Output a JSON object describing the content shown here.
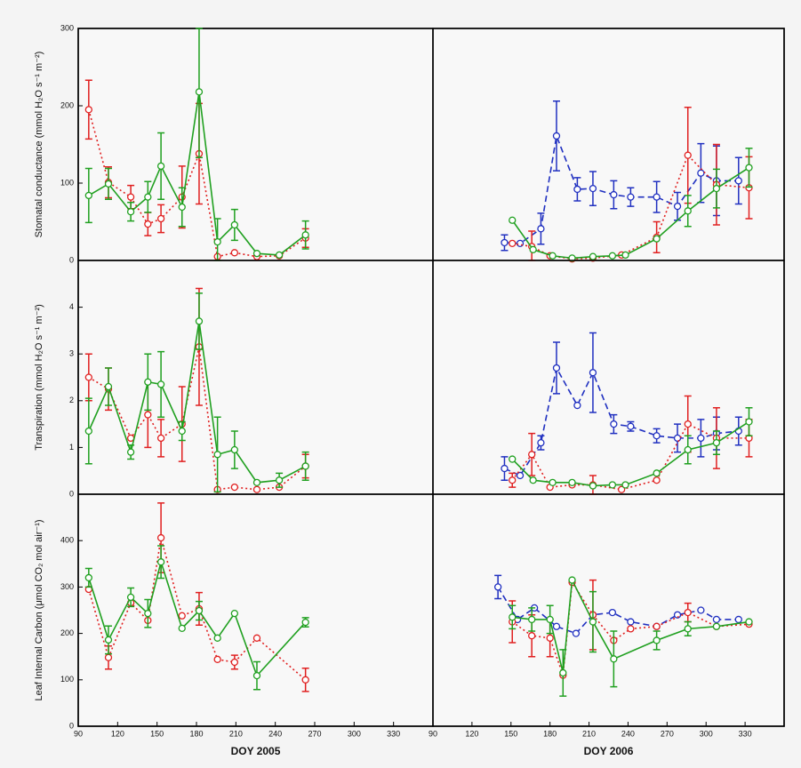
{
  "chart_data": [
    {
      "type": "line",
      "ylabel": "Stomatal conductance (mmol H₂O s⁻¹ m⁻²)",
      "xlim": [
        90,
        360
      ],
      "ylim": [
        0,
        300
      ],
      "yticks": [
        0,
        100,
        200,
        300
      ],
      "series": [
        {
          "color": "#e02020",
          "style": "dotted",
          "x": [
            98,
            113,
            130,
            143,
            153,
            169,
            182,
            196,
            209,
            226,
            243,
            263
          ],
          "values": [
            195,
            101,
            82,
            47,
            54,
            82,
            138,
            5,
            10,
            5,
            6,
            29
          ],
          "errors": [
            38,
            20,
            15,
            15,
            18,
            40,
            65,
            null,
            null,
            null,
            null,
            12
          ]
        },
        {
          "color": "#20a020",
          "style": "solid",
          "x": [
            98,
            113,
            130,
            143,
            153,
            169,
            182,
            196,
            209,
            226,
            243,
            263
          ],
          "values": [
            84,
            99,
            63,
            82,
            122,
            69,
            218,
            24,
            46,
            9,
            7,
            33
          ],
          "errors": [
            35,
            20,
            12,
            20,
            43,
            25,
            85,
            30,
            20,
            null,
            null,
            18
          ]
        }
      ]
    },
    {
      "type": "line",
      "xlim": [
        90,
        360
      ],
      "ylim": [
        0,
        300
      ],
      "series": [
        {
          "color": "#2030c0",
          "style": "dashed",
          "x": [
            145,
            157,
            173,
            185,
            201,
            213,
            229,
            242,
            262,
            278,
            296,
            308,
            325
          ],
          "values": [
            23,
            22,
            41,
            161,
            92,
            93,
            85,
            82,
            82,
            70,
            113,
            103,
            103
          ],
          "errors": [
            10,
            null,
            20,
            45,
            15,
            22,
            18,
            12,
            20,
            18,
            38,
            45,
            30
          ]
        },
        {
          "color": "#e02020",
          "style": "dotted",
          "x": [
            151,
            166,
            180,
            197,
            213,
            235,
            262,
            286,
            308,
            333
          ],
          "values": [
            22,
            18,
            6,
            2,
            3,
            7,
            30,
            136,
            98,
            94
          ],
          "errors": [
            null,
            20,
            null,
            null,
            null,
            null,
            20,
            62,
            52,
            40
          ]
        },
        {
          "color": "#20a020",
          "style": "solid",
          "x": [
            151,
            167,
            182,
            197,
            213,
            228,
            238,
            262,
            286,
            308,
            333
          ],
          "values": [
            52,
            14,
            6,
            3,
            5,
            6,
            7,
            28,
            64,
            93,
            120
          ],
          "errors": [
            null,
            null,
            null,
            null,
            null,
            null,
            null,
            null,
            20,
            25,
            25
          ]
        }
      ]
    },
    {
      "type": "line",
      "ylabel": "Transpiration (mmol H₂O s⁻¹ m⁻²)",
      "xlim": [
        90,
        360
      ],
      "ylim": [
        0,
        5
      ],
      "yticks": [
        0,
        1,
        2,
        3,
        4
      ],
      "series": [
        {
          "color": "#e02020",
          "style": "dotted",
          "x": [
            98,
            113,
            130,
            143,
            153,
            169,
            182,
            196,
            209,
            226,
            243,
            263
          ],
          "values": [
            2.5,
            2.25,
            1.2,
            1.7,
            1.2,
            1.5,
            3.15,
            0.1,
            0.15,
            0.1,
            0.15,
            0.6
          ],
          "errors": [
            0.5,
            0.45,
            null,
            0.7,
            0.4,
            0.8,
            1.25,
            null,
            null,
            null,
            null,
            0.25
          ]
        },
        {
          "color": "#20a020",
          "style": "solid",
          "x": [
            98,
            113,
            130,
            143,
            153,
            169,
            182,
            196,
            209,
            226,
            243,
            263
          ],
          "values": [
            1.35,
            2.3,
            0.9,
            2.4,
            2.35,
            1.35,
            3.7,
            0.85,
            0.95,
            0.25,
            0.3,
            0.6
          ],
          "errors": [
            0.7,
            0.4,
            0.15,
            0.6,
            0.7,
            0.2,
            0.6,
            0.8,
            0.4,
            null,
            0.15,
            0.3
          ]
        }
      ]
    },
    {
      "type": "line",
      "xlim": [
        90,
        360
      ],
      "ylim": [
        0,
        5
      ],
      "series": [
        {
          "color": "#2030c0",
          "style": "dashed",
          "x": [
            145,
            157,
            173,
            185,
            201,
            213,
            229,
            242,
            262,
            278,
            296,
            308,
            325
          ],
          "values": [
            0.55,
            0.4,
            1.1,
            2.7,
            1.9,
            2.6,
            1.5,
            1.45,
            1.25,
            1.2,
            1.2,
            1.3,
            1.35
          ],
          "errors": [
            0.25,
            null,
            0.15,
            0.55,
            null,
            0.85,
            0.2,
            0.1,
            0.15,
            0.3,
            0.4,
            0.35,
            0.3
          ]
        },
        {
          "color": "#e02020",
          "style": "dotted",
          "x": [
            151,
            166,
            180,
            197,
            213,
            235,
            262,
            286,
            308,
            333
          ],
          "values": [
            0.3,
            0.85,
            0.15,
            0.2,
            0.2,
            0.1,
            0.3,
            1.5,
            1.2,
            1.2
          ],
          "errors": [
            0.15,
            0.45,
            null,
            null,
            0.2,
            null,
            null,
            0.6,
            0.65,
            0.4
          ]
        },
        {
          "color": "#20a020",
          "style": "solid",
          "x": [
            151,
            167,
            182,
            197,
            213,
            228,
            238,
            262,
            286,
            308,
            333
          ],
          "values": [
            0.75,
            0.3,
            0.25,
            0.25,
            0.18,
            0.2,
            0.2,
            0.45,
            0.95,
            1.1,
            1.55
          ],
          "errors": [
            null,
            null,
            null,
            null,
            null,
            null,
            null,
            null,
            0.3,
            0.25,
            0.3
          ]
        }
      ]
    },
    {
      "type": "line",
      "ylabel": "Leaf Internal Carbon (μmol CO₂ mol air⁻¹)",
      "xlabel": "DOY 2005",
      "xlim": [
        90,
        360
      ],
      "xticks": [
        90,
        120,
        150,
        180,
        210,
        240,
        270,
        300,
        330
      ],
      "ylim": [
        0,
        500
      ],
      "yticks": [
        0,
        100,
        200,
        300,
        400
      ],
      "series": [
        {
          "color": "#e02020",
          "style": "dotted",
          "x": [
            98,
            113,
            130,
            143,
            153,
            169,
            182,
            196,
            209,
            226,
            263
          ],
          "values": [
            295,
            148,
            266,
            228,
            406,
            238,
            253,
            144,
            138,
            190,
            100
          ],
          "errors": [
            null,
            25,
            null,
            null,
            75,
            null,
            35,
            null,
            15,
            null,
            25
          ]
        },
        {
          "color": "#20a020",
          "style": "solid",
          "x": [
            98,
            113,
            130,
            143,
            153,
            169,
            182,
            196,
            209,
            226,
            263
          ],
          "values": [
            320,
            186,
            278,
            243,
            354,
            211,
            249,
            190,
            243,
            109,
            224
          ],
          "errors": [
            20,
            30,
            20,
            30,
            35,
            null,
            20,
            null,
            null,
            30,
            10
          ]
        }
      ]
    },
    {
      "type": "line",
      "xlabel": "DOY 2006",
      "xlim": [
        90,
        360
      ],
      "xticks": [
        90,
        120,
        150,
        180,
        210,
        240,
        270,
        300,
        330
      ],
      "ylim": [
        0,
        500
      ],
      "series": [
        {
          "color": "#2030c0",
          "style": "dashed",
          "x": [
            140,
            155,
            168,
            185,
            200,
            213,
            228,
            242,
            262,
            278,
            296,
            308,
            325
          ],
          "values": [
            300,
            230,
            255,
            215,
            200,
            240,
            245,
            225,
            215,
            240,
            250,
            230,
            230
          ],
          "errors": [
            25,
            null,
            null,
            null,
            null,
            null,
            null,
            null,
            null,
            null,
            null,
            null,
            null
          ]
        },
        {
          "color": "#e02020",
          "style": "dotted",
          "x": [
            151,
            166,
            180,
            190,
            197,
            213,
            229,
            242,
            262,
            286,
            308,
            333
          ],
          "values": [
            225,
            195,
            190,
            110,
            310,
            240,
            185,
            210,
            215,
            245,
            215,
            220
          ],
          "errors": [
            45,
            45,
            40,
            null,
            null,
            75,
            null,
            null,
            null,
            20,
            null,
            null
          ]
        },
        {
          "color": "#20a020",
          "style": "solid",
          "x": [
            151,
            166,
            180,
            190,
            197,
            213,
            229,
            262,
            286,
            308,
            333
          ],
          "values": [
            235,
            230,
            230,
            115,
            315,
            225,
            145,
            185,
            210,
            215,
            225
          ],
          "errors": [
            25,
            25,
            30,
            50,
            null,
            65,
            60,
            20,
            15,
            null,
            null
          ]
        }
      ]
    }
  ]
}
